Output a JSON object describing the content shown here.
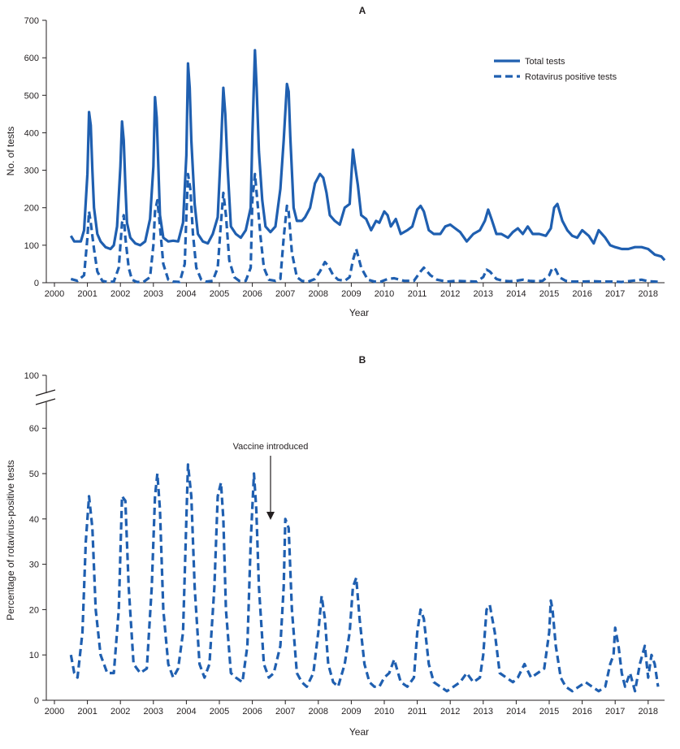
{
  "colors": {
    "series": "#1f5fb0",
    "axis": "#231f20"
  },
  "chart_data": [
    {
      "panel": "A",
      "type": "line",
      "xlabel": "Year",
      "ylabel": "No. of tests",
      "x_ticks": [
        "2000",
        "2001",
        "2002",
        "2003",
        "2004",
        "2005",
        "2006",
        "2007",
        "2008",
        "2009",
        "2010",
        "2011",
        "2012",
        "2013",
        "2014",
        "2015",
        "2016",
        "2017",
        "2018"
      ],
      "y_ticks": [
        "0",
        "100",
        "200",
        "300",
        "400",
        "500",
        "600",
        "700"
      ],
      "xlim": [
        2000,
        2019
      ],
      "ylim": [
        0,
        700
      ],
      "legend": {
        "position": "top-right"
      },
      "series": [
        {
          "name": "Total tests",
          "style": "solid",
          "x": [
            2000.5,
            2000.6,
            2000.8,
            2000.9,
            2001.0,
            2001.05,
            2001.1,
            2001.15,
            2001.2,
            2001.3,
            2001.4,
            2001.55,
            2001.7,
            2001.8,
            2001.9,
            2002.0,
            2002.05,
            2002.1,
            2002.15,
            2002.2,
            2002.3,
            2002.45,
            2002.6,
            2002.75,
            2002.9,
            2003.0,
            2003.05,
            2003.1,
            2003.15,
            2003.2,
            2003.3,
            2003.45,
            2003.6,
            2003.75,
            2003.9,
            2004.0,
            2004.05,
            2004.1,
            2004.15,
            2004.25,
            2004.35,
            2004.5,
            2004.65,
            2004.8,
            2004.95,
            2005.05,
            2005.12,
            2005.18,
            2005.25,
            2005.35,
            2005.5,
            2005.65,
            2005.8,
            2005.95,
            2006.0,
            2006.08,
            2006.13,
            2006.2,
            2006.3,
            2006.4,
            2006.55,
            2006.7,
            2006.85,
            2006.95,
            2007.05,
            2007.1,
            2007.15,
            2007.25,
            2007.35,
            2007.5,
            2007.6,
            2007.75,
            2007.9,
            2008.05,
            2008.15,
            2008.25,
            2008.35,
            2008.5,
            2008.65,
            2008.8,
            2008.95,
            2009.05,
            2009.1,
            2009.2,
            2009.3,
            2009.45,
            2009.6,
            2009.75,
            2009.85,
            2010.0,
            2010.1,
            2010.2,
            2010.35,
            2010.5,
            2010.7,
            2010.85,
            2011.0,
            2011.1,
            2011.2,
            2011.35,
            2011.5,
            2011.7,
            2011.85,
            2012.0,
            2012.15,
            2012.3,
            2012.5,
            2012.7,
            2012.9,
            2013.05,
            2013.15,
            2013.25,
            2013.4,
            2013.55,
            2013.75,
            2013.9,
            2014.05,
            2014.2,
            2014.35,
            2014.5,
            2014.7,
            2014.9,
            2015.05,
            2015.15,
            2015.25,
            2015.4,
            2015.55,
            2015.7,
            2015.85,
            2016.0,
            2016.2,
            2016.35,
            2016.5,
            2016.7,
            2016.85,
            2017.0,
            2017.2,
            2017.4,
            2017.6,
            2017.8,
            2018.0,
            2018.2,
            2018.4,
            2018.5
          ],
          "values": [
            125,
            110,
            110,
            140,
            290,
            455,
            420,
            300,
            200,
            130,
            110,
            95,
            90,
            100,
            150,
            310,
            430,
            380,
            260,
            160,
            120,
            105,
            100,
            110,
            170,
            310,
            495,
            440,
            310,
            180,
            120,
            110,
            112,
            110,
            160,
            340,
            585,
            520,
            380,
            210,
            130,
            110,
            105,
            130,
            175,
            360,
            520,
            450,
            310,
            150,
            130,
            120,
            140,
            200,
            390,
            620,
            520,
            350,
            220,
            150,
            135,
            150,
            250,
            380,
            530,
            510,
            390,
            200,
            165,
            165,
            175,
            200,
            265,
            290,
            280,
            240,
            180,
            165,
            155,
            200,
            210,
            355,
            320,
            260,
            180,
            170,
            140,
            165,
            160,
            190,
            180,
            150,
            170,
            130,
            140,
            150,
            195,
            205,
            190,
            140,
            130,
            130,
            150,
            155,
            145,
            135,
            110,
            130,
            140,
            165,
            195,
            170,
            130,
            130,
            120,
            135,
            145,
            130,
            150,
            130,
            130,
            125,
            145,
            200,
            210,
            165,
            140,
            125,
            120,
            140,
            125,
            105,
            140,
            120,
            100,
            95,
            90,
            90,
            95,
            95,
            90,
            75,
            70,
            60
          ]
        },
        {
          "name": "Rotavirus positive tests",
          "style": "dashed",
          "x": [
            2000.5,
            2000.7,
            2000.9,
            2001.0,
            2001.05,
            2001.1,
            2001.2,
            2001.3,
            2001.45,
            2001.6,
            2001.8,
            2001.95,
            2002.05,
            2002.1,
            2002.15,
            2002.25,
            2002.35,
            2002.5,
            2002.7,
            2002.9,
            2003.0,
            2003.05,
            2003.12,
            2003.2,
            2003.3,
            2003.45,
            2003.6,
            2003.8,
            2003.95,
            2004.0,
            2004.05,
            2004.12,
            2004.2,
            2004.3,
            2004.45,
            2004.6,
            2004.8,
            2004.95,
            2005.05,
            2005.12,
            2005.2,
            2005.3,
            2005.45,
            2005.6,
            2005.8,
            2005.95,
            2006.0,
            2006.08,
            2006.15,
            2006.25,
            2006.35,
            2006.5,
            2006.7,
            2006.85,
            2006.95,
            2007.05,
            2007.1,
            2007.2,
            2007.35,
            2007.5,
            2007.7,
            2007.9,
            2008.05,
            2008.2,
            2008.3,
            2008.45,
            2008.6,
            2008.8,
            2008.95,
            2009.05,
            2009.15,
            2009.3,
            2009.5,
            2009.7,
            2009.9,
            2010.1,
            2010.3,
            2010.6,
            2010.9,
            2011.1,
            2011.2,
            2011.4,
            2011.6,
            2011.9,
            2012.2,
            2012.5,
            2012.8,
            2013.0,
            2013.1,
            2013.2,
            2013.4,
            2013.6,
            2013.8,
            2014.0,
            2014.2,
            2014.4,
            2014.6,
            2014.8,
            2015.0,
            2015.1,
            2015.2,
            2015.3,
            2015.5,
            2015.7,
            2016.0,
            2016.3,
            2016.6,
            2016.9,
            2017.2,
            2017.5,
            2017.8,
            2018.0,
            2018.2,
            2018.4
          ],
          "values": [
            10,
            5,
            20,
            120,
            190,
            160,
            90,
            30,
            5,
            2,
            3,
            40,
            160,
            180,
            120,
            40,
            8,
            2,
            2,
            15,
            100,
            190,
            220,
            150,
            50,
            8,
            3,
            2,
            50,
            180,
            290,
            250,
            130,
            40,
            8,
            3,
            5,
            40,
            160,
            240,
            180,
            60,
            15,
            5,
            5,
            40,
            220,
            290,
            220,
            120,
            40,
            8,
            5,
            10,
            120,
            205,
            190,
            80,
            15,
            5,
            3,
            10,
            30,
            55,
            45,
            20,
            8,
            5,
            15,
            60,
            90,
            40,
            8,
            3,
            3,
            10,
            12,
            5,
            5,
            30,
            40,
            20,
            8,
            3,
            5,
            4,
            3,
            15,
            35,
            30,
            10,
            5,
            4,
            5,
            8,
            5,
            4,
            5,
            20,
            40,
            35,
            15,
            5,
            3,
            3,
            4,
            3,
            3,
            2,
            5,
            8,
            4,
            3,
            2
          ]
        }
      ]
    },
    {
      "panel": "B",
      "type": "line",
      "xlabel": "Year",
      "ylabel": "Percentage of rotavirus-positive tests",
      "x_ticks": [
        "2000",
        "2001",
        "2002",
        "2003",
        "2004",
        "2005",
        "2006",
        "2007",
        "2008",
        "2009",
        "2010",
        "2011",
        "2012",
        "2013",
        "2014",
        "2015",
        "2016",
        "2017",
        "2018"
      ],
      "y_ticks": [
        "0",
        "10",
        "20",
        "30",
        "40",
        "50",
        "60",
        "100"
      ],
      "xlim": [
        2000,
        2019
      ],
      "ylim": [
        0,
        100
      ],
      "axis_break": [
        65,
        95
      ],
      "annotation": {
        "text": "Vaccine introduced",
        "x": 2006.6,
        "y_tip": 40
      },
      "series": [
        {
          "name": "Percentage of rotavirus-positive tests",
          "style": "dashed",
          "x": [
            2000.5,
            2000.6,
            2000.7,
            2000.85,
            2000.95,
            2001.05,
            2001.15,
            2001.25,
            2001.4,
            2001.6,
            2001.8,
            2001.95,
            2002.05,
            2002.15,
            2002.25,
            2002.4,
            2002.6,
            2002.8,
            2002.95,
            2003.05,
            2003.12,
            2003.2,
            2003.3,
            2003.45,
            2003.6,
            2003.75,
            2003.9,
            2004.0,
            2004.05,
            2004.15,
            2004.25,
            2004.4,
            2004.55,
            2004.7,
            2004.85,
            2004.95,
            2005.05,
            2005.12,
            2005.2,
            2005.35,
            2005.5,
            2005.7,
            2005.85,
            2005.95,
            2006.05,
            2006.12,
            2006.2,
            2006.35,
            2006.5,
            2006.65,
            2006.85,
            2006.95,
            2007.0,
            2007.1,
            2007.2,
            2007.35,
            2007.5,
            2007.65,
            2007.85,
            2008.0,
            2008.1,
            2008.2,
            2008.3,
            2008.45,
            2008.6,
            2008.8,
            2008.95,
            2009.05,
            2009.15,
            2009.25,
            2009.4,
            2009.55,
            2009.7,
            2009.85,
            2010.0,
            2010.15,
            2010.3,
            2010.5,
            2010.7,
            2010.9,
            2011.0,
            2011.1,
            2011.2,
            2011.35,
            2011.5,
            2011.7,
            2011.9,
            2012.1,
            2012.3,
            2012.5,
            2012.7,
            2012.9,
            2013.0,
            2013.1,
            2013.2,
            2013.35,
            2013.5,
            2013.7,
            2013.9,
            2014.05,
            2014.25,
            2014.45,
            2014.65,
            2014.85,
            2015.0,
            2015.05,
            2015.1,
            2015.2,
            2015.35,
            2015.5,
            2015.7,
            2015.9,
            2016.1,
            2016.3,
            2016.5,
            2016.7,
            2016.85,
            2016.95,
            2017.0,
            2017.1,
            2017.2,
            2017.3,
            2017.45,
            2017.6,
            2017.75,
            2017.9,
            2018.0,
            2018.1,
            2018.2,
            2018.3
          ],
          "values": [
            10,
            6,
            5,
            15,
            35,
            45,
            38,
            20,
            10,
            6,
            6,
            20,
            45,
            44,
            25,
            8,
            6,
            7,
            25,
            45,
            50,
            42,
            20,
            8,
            5,
            7,
            15,
            40,
            52,
            45,
            25,
            8,
            5,
            8,
            25,
            45,
            48,
            40,
            20,
            6,
            5,
            4,
            12,
            35,
            50,
            42,
            25,
            8,
            5,
            6,
            12,
            25,
            40,
            38,
            20,
            6,
            4,
            3,
            6,
            15,
            23,
            18,
            8,
            4,
            3,
            8,
            15,
            25,
            27,
            18,
            8,
            4,
            3,
            3,
            5,
            6,
            9,
            4,
            3,
            5,
            15,
            20,
            18,
            8,
            4,
            3,
            2,
            3,
            4,
            6,
            4,
            5,
            10,
            20,
            21,
            15,
            6,
            5,
            4,
            5,
            8,
            5,
            6,
            7,
            15,
            22,
            20,
            12,
            5,
            3,
            2,
            3,
            4,
            3,
            2,
            3,
            8,
            10,
            16,
            12,
            6,
            3,
            6,
            2,
            8,
            12,
            5,
            10,
            8,
            3
          ]
        }
      ]
    }
  ]
}
